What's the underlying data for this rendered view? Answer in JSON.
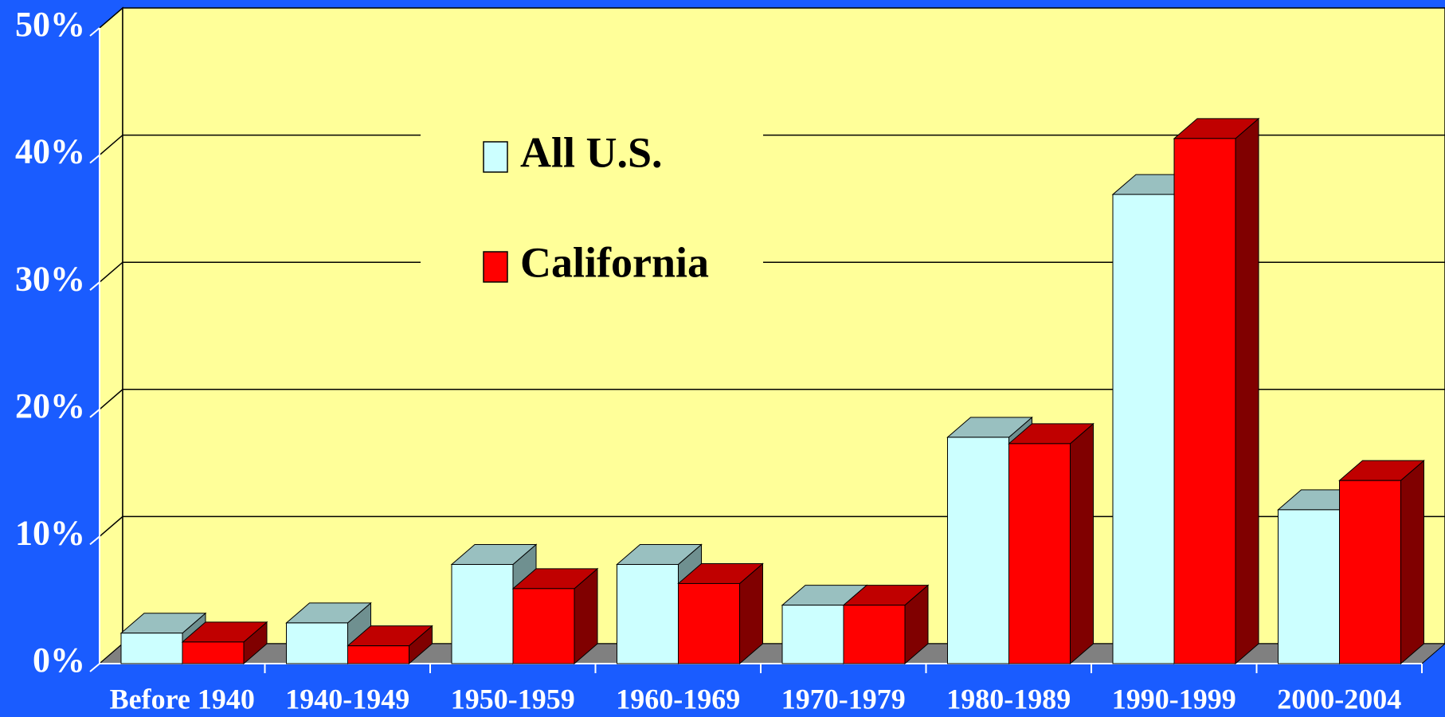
{
  "chart_data": {
    "type": "bar3d",
    "categories": [
      "Before 1940",
      "1940-1949",
      "1950-1959",
      "1960-1969",
      "1970-1979",
      "1980-1989",
      "1990-1999",
      "2000-2004"
    ],
    "series": [
      {
        "name": "All U.S.",
        "color": "#ccffff",
        "values": [
          2.4,
          3.2,
          7.8,
          7.8,
          4.6,
          17.8,
          36.9,
          12.1
        ]
      },
      {
        "name": "California",
        "color": "#ff0000",
        "values": [
          1.7,
          1.4,
          5.9,
          6.3,
          4.6,
          17.3,
          41.3,
          14.4
        ]
      }
    ],
    "ylim": [
      0,
      50
    ],
    "yticks": [
      {
        "value": 0,
        "label": "0%"
      },
      {
        "value": 10,
        "label": "10%"
      },
      {
        "value": 20,
        "label": "20%"
      },
      {
        "value": 30,
        "label": "30%"
      },
      {
        "value": 40,
        "label": "40%"
      },
      {
        "value": 50,
        "label": "50%"
      }
    ],
    "grid": true
  }
}
